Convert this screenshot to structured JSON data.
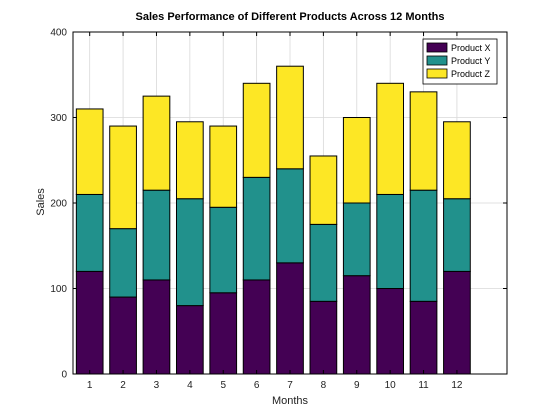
{
  "chart_data": {
    "type": "bar",
    "stacked": true,
    "title": "Sales Performance of Different Products Across 12 Months",
    "xlabel": "Months",
    "ylabel": "Sales",
    "categories": [
      "1",
      "2",
      "3",
      "4",
      "5",
      "6",
      "7",
      "8",
      "9",
      "10",
      "11",
      "12"
    ],
    "ylim": [
      0,
      400
    ],
    "xlim": [
      0.5,
      13.5
    ],
    "yticks": [
      "0",
      "100",
      "200",
      "300",
      "400"
    ],
    "grid": true,
    "legend_position": "top-right",
    "series": [
      {
        "name": "Product X",
        "color": "#440154",
        "values": [
          120,
          90,
          110,
          80,
          95,
          110,
          130,
          85,
          115,
          100,
          85,
          120
        ]
      },
      {
        "name": "Product Y",
        "color": "#21918c",
        "values": [
          90,
          80,
          105,
          125,
          100,
          120,
          110,
          90,
          85,
          110,
          130,
          85
        ]
      },
      {
        "name": "Product Z",
        "color": "#fde725",
        "values": [
          100,
          120,
          110,
          90,
          95,
          110,
          120,
          80,
          100,
          130,
          115,
          90
        ]
      }
    ]
  }
}
